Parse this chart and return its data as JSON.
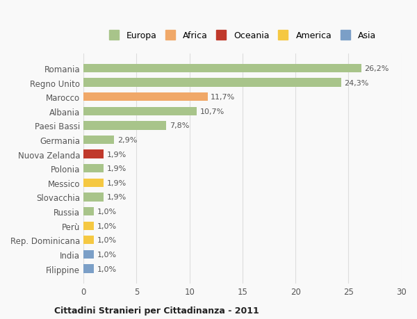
{
  "categories": [
    "Filippine",
    "India",
    "Rep. Dominicana",
    "Perù",
    "Russia",
    "Slovacchia",
    "Messico",
    "Polonia",
    "Nuova Zelanda",
    "Germania",
    "Paesi Bassi",
    "Albania",
    "Marocco",
    "Regno Unito",
    "Romania"
  ],
  "values": [
    1.0,
    1.0,
    1.0,
    1.0,
    1.0,
    1.9,
    1.9,
    1.9,
    1.9,
    2.9,
    7.8,
    10.7,
    11.7,
    24.3,
    26.2
  ],
  "labels": [
    "1,0%",
    "1,0%",
    "1,0%",
    "1,0%",
    "1,0%",
    "1,9%",
    "1,9%",
    "1,9%",
    "1,9%",
    "2,9%",
    "7,8%",
    "10,7%",
    "11,7%",
    "24,3%",
    "26,2%"
  ],
  "colors": [
    "#7b9fc7",
    "#7b9fc7",
    "#f5c842",
    "#f5c842",
    "#a8c48a",
    "#a8c48a",
    "#f5c842",
    "#a8c48a",
    "#c0392b",
    "#a8c48a",
    "#a8c48a",
    "#a8c48a",
    "#f0a868",
    "#a8c48a",
    "#a8c48a"
  ],
  "legend_labels": [
    "Europa",
    "Africa",
    "Oceania",
    "America",
    "Asia"
  ],
  "legend_colors": [
    "#a8c48a",
    "#f0a868",
    "#c0392b",
    "#f5c842",
    "#7b9fc7"
  ],
  "title": "Cittadini Stranieri per Cittadinanza - 2011",
  "xlim": [
    0,
    30
  ],
  "xticks": [
    0,
    5,
    10,
    15,
    20,
    25,
    30
  ],
  "background_color": "#f9f9f9",
  "grid_color": "#dddddd",
  "bar_height": 0.6
}
